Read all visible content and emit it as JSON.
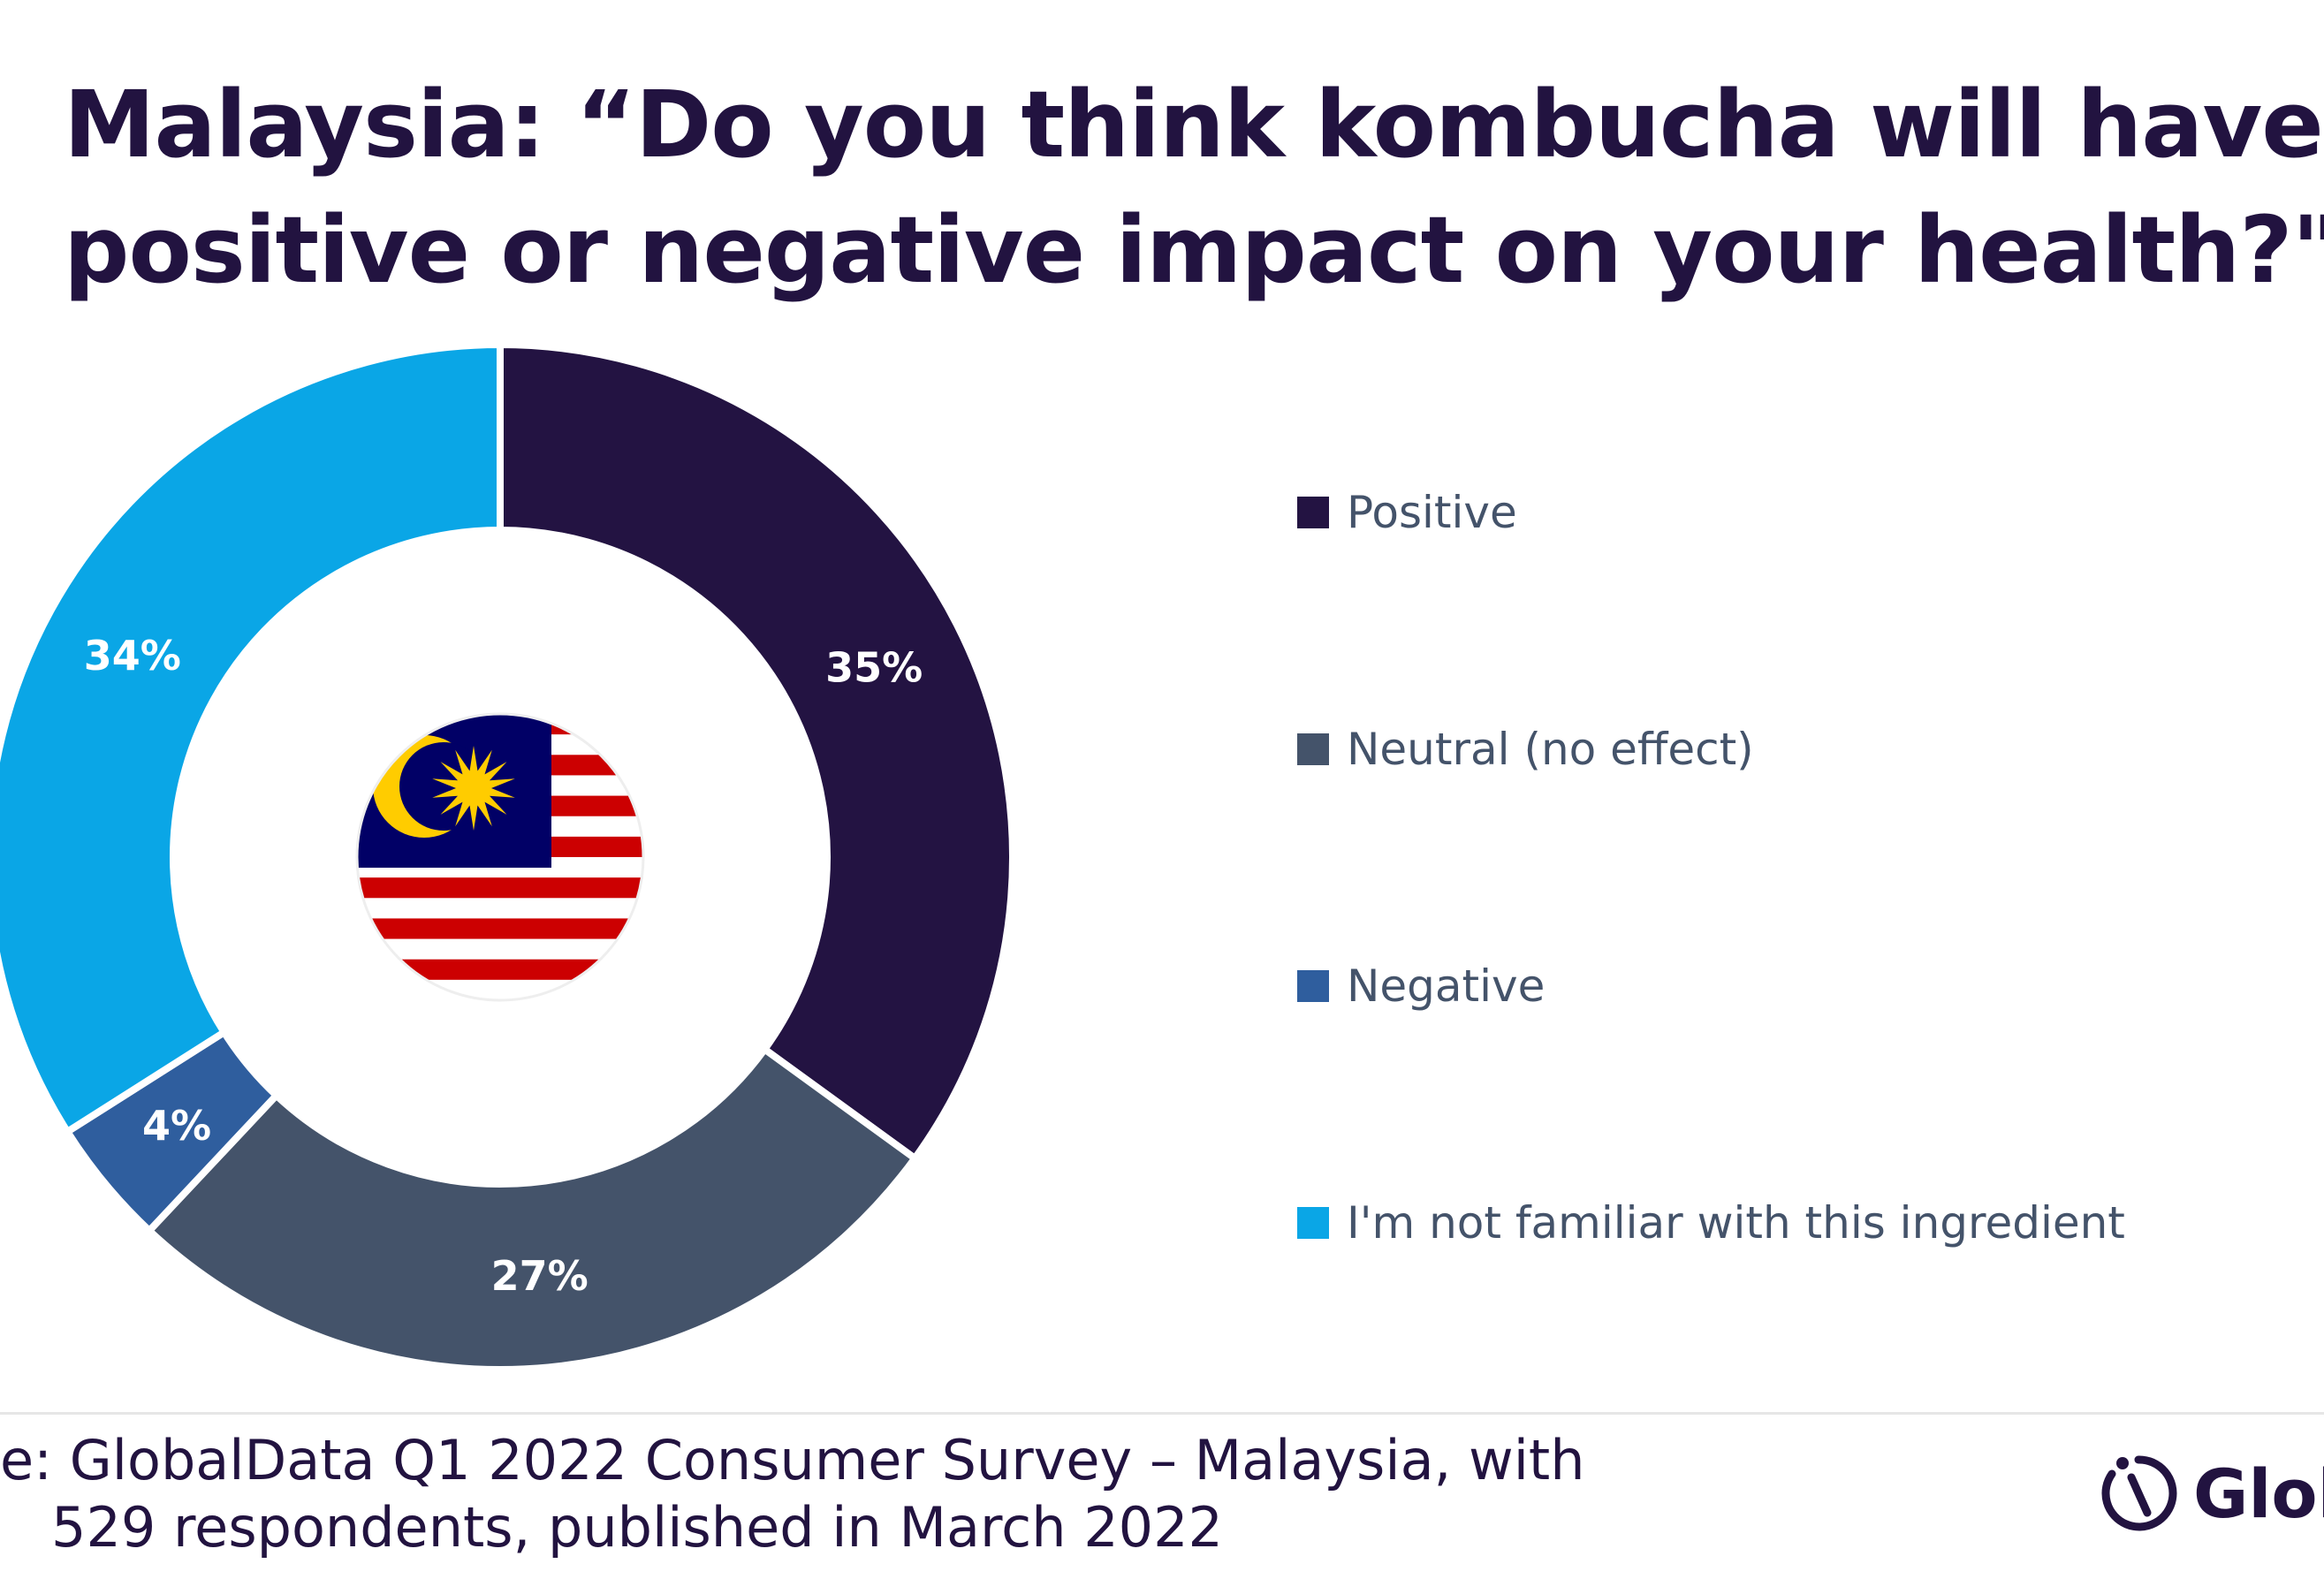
{
  "title_lines": [
    "Malaysia: “Do you think kombucha will have a",
    "positive or negative impact on your health?\""
  ],
  "chart_data": {
    "type": "pie",
    "style": "donut",
    "categories": [
      "Positive",
      "Neutral (no effect)",
      "Negative",
      "I'm not familiar with this ingredient"
    ],
    "values": [
      35,
      27,
      4,
      34
    ],
    "value_labels": [
      "35%",
      "27%",
      "4%",
      "34%"
    ],
    "colors": [
      "#231342",
      "#44536a",
      "#2f5e9e",
      "#0aa6e6"
    ],
    "legend_position": "right",
    "center_icon": "malaysia-flag"
  },
  "source_lines": [
    "e: GlobalData Q1 2022 Consumer Survey – Malaysia, with",
    "529 respondents, published in March 2022"
  ],
  "brand": {
    "text": "Glob",
    "icon": "globaldata-logo-icon"
  }
}
